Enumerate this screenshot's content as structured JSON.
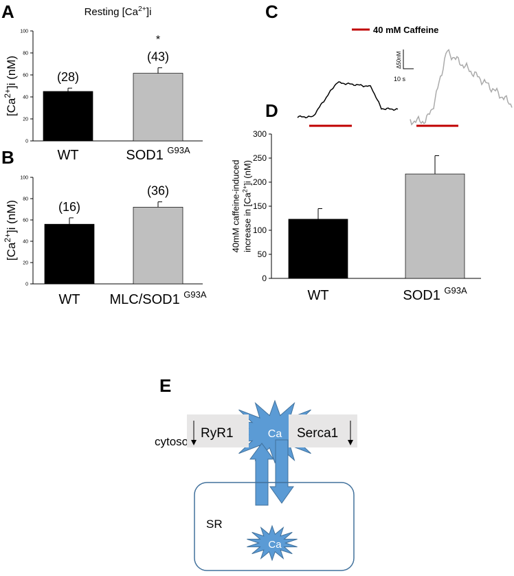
{
  "panel_labels": [
    "A",
    "B",
    "C",
    "D",
    "E"
  ],
  "chart_data": [
    {
      "type": "bar",
      "title": [
        [
          "Resting [Ca",
          "2+",
          "]i"
        ]
      ],
      "y_label": [
        [
          "[Ca",
          "2+",
          "]i (nM)"
        ]
      ],
      "categories": [
        [
          "WT"
        ],
        [
          "SOD1 ",
          "G93A"
        ]
      ],
      "values": [
        45,
        61.5
      ],
      "errors": [
        3,
        5
      ],
      "n_labels": [
        "(28)",
        "(43)"
      ],
      "significance": [
        null,
        "*"
      ],
      "colors": [
        "#000000",
        "#bfbfbf"
      ],
      "ylim": [
        0,
        100
      ],
      "yticks": [
        0,
        20,
        40,
        60,
        80,
        100
      ]
    },
    {
      "type": "bar",
      "y_label": [
        [
          "[Ca",
          "2+",
          "]i (nM)"
        ]
      ],
      "categories": [
        [
          "WT"
        ],
        [
          "MLC/SOD1 ",
          "G93A"
        ]
      ],
      "values": [
        56,
        72
      ],
      "errors": [
        6,
        5
      ],
      "n_labels": [
        "(16)",
        "(36)"
      ],
      "colors": [
        "#000000",
        "#bfbfbf"
      ],
      "ylim": [
        0,
        100
      ],
      "yticks": [
        0,
        20,
        40,
        60,
        80,
        100
      ]
    },
    {
      "type": "bar",
      "y_label": [
        [
          "40mM caffeine-induced"
        ],
        [
          "increase in [Ca",
          "2+",
          "]i (nM)"
        ]
      ],
      "categories": [
        [
          "WT"
        ],
        [
          "SOD1 ",
          "G93A"
        ]
      ],
      "values": [
        123,
        217
      ],
      "errors": [
        22,
        38
      ],
      "colors": [
        "#000000",
        "#bfbfbf"
      ],
      "ylim": [
        0,
        300
      ],
      "yticks": [
        0,
        50,
        100,
        150,
        200,
        250,
        300
      ]
    }
  ],
  "trace_panel": {
    "legend": "40 mM Caffeine",
    "scale_y": "Δ50nM",
    "scale_x": "10 s",
    "stimulus_color": "#c00000"
  },
  "diagram": {
    "cytosol": "cytosol",
    "ca_cytosol": "Ca",
    "ryr1": "RyR1",
    "serca1": "Serca1",
    "sr": "SR",
    "ca_sr": "Ca"
  }
}
